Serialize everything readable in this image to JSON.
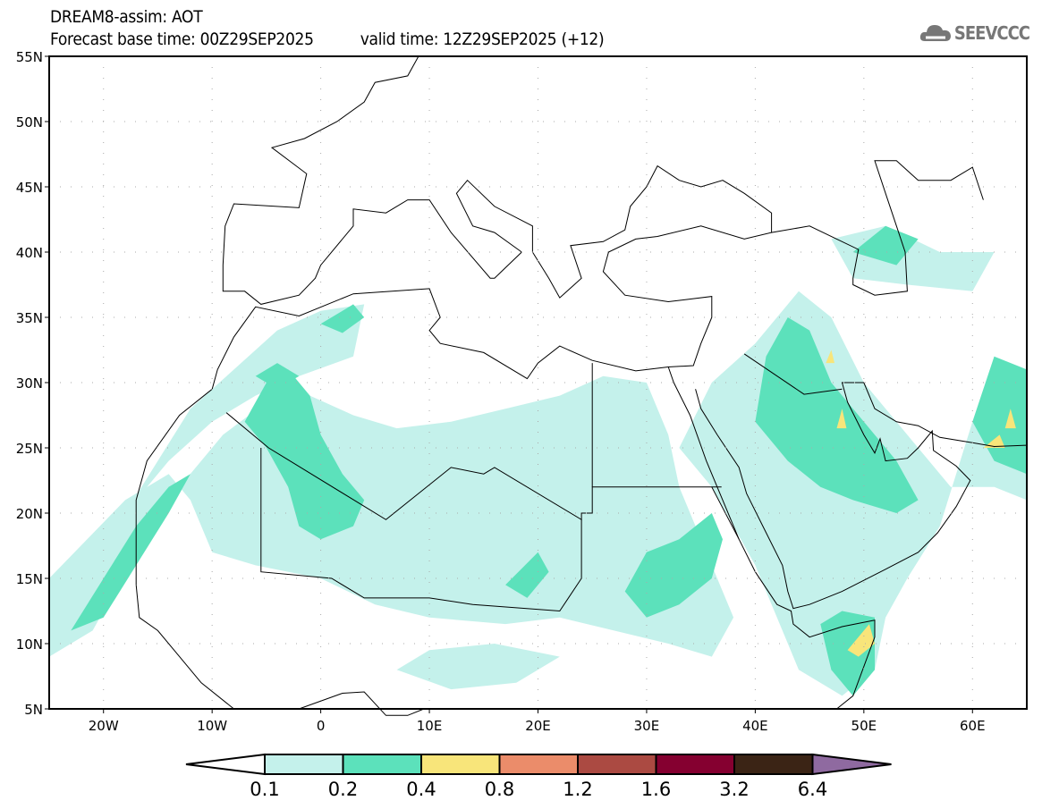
{
  "header": {
    "title": "DREAM8-assim: AOT",
    "base_time": "Forecast base time: 00Z29SEP2025",
    "valid_time": "valid time: 12Z29SEP2025 (+12)"
  },
  "logo": {
    "text": "SEEVCCC",
    "icon": "cloud-icon"
  },
  "map": {
    "lat_labels": [
      "55N",
      "50N",
      "45N",
      "40N",
      "35N",
      "30N",
      "25N",
      "20N",
      "15N",
      "10N",
      "5N"
    ],
    "lat_values": [
      55,
      50,
      45,
      40,
      35,
      30,
      25,
      20,
      15,
      10,
      5
    ],
    "lon_labels": [
      "20W",
      "10W",
      "0",
      "10E",
      "20E",
      "30E",
      "40E",
      "50E",
      "60E"
    ],
    "lon_values": [
      -20,
      -10,
      0,
      10,
      20,
      30,
      40,
      50,
      60
    ],
    "lon_range": [
      -25,
      65
    ],
    "lat_range": [
      5,
      55
    ]
  },
  "colorbar": {
    "colors": [
      "#ffffff",
      "#c4f1eb",
      "#5ce1bb",
      "#f8e57a",
      "#eb8c6a",
      "#ab4a42",
      "#850030",
      "#3b2415",
      "#8f6aa0"
    ],
    "labels": [
      "0.1",
      "0.2",
      "0.4",
      "0.8",
      "1.2",
      "1.6",
      "3.2",
      "6.4"
    ]
  }
}
